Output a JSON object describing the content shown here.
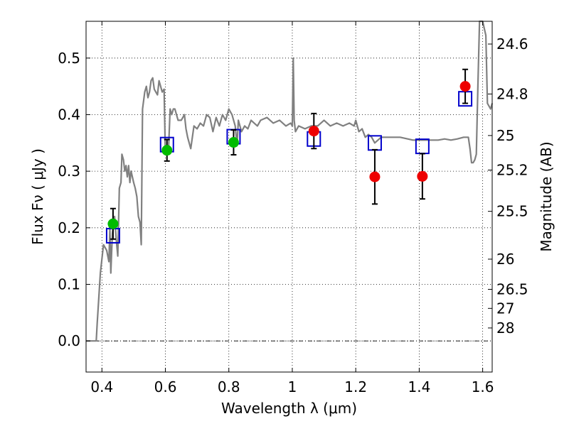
{
  "chart_data": {
    "type": "scatter",
    "title": "",
    "xlabel": "Wavelength  λ (μm)",
    "ylabel": "Flux  Fν  ( μJy )",
    "ylabel_right": "Magnitude (AB)",
    "xlim": [
      0.35,
      1.63
    ],
    "ylim": [
      -0.055,
      0.565
    ],
    "grid": true,
    "x_ticks": [
      {
        "value": 0.4,
        "label": "0.4"
      },
      {
        "value": 0.6,
        "label": "0.6"
      },
      {
        "value": 0.8,
        "label": "0.8"
      },
      {
        "value": 1.0,
        "label": "1"
      },
      {
        "value": 1.2,
        "label": "1.2"
      },
      {
        "value": 1.4,
        "label": "1.4"
      },
      {
        "value": 1.6,
        "label": "1.6"
      }
    ],
    "y_ticks": [
      {
        "value": 0.0,
        "label": "0.0"
      },
      {
        "value": 0.1,
        "label": "0.1"
      },
      {
        "value": 0.2,
        "label": "0.2"
      },
      {
        "value": 0.3,
        "label": "0.3"
      },
      {
        "value": 0.4,
        "label": "0.4"
      },
      {
        "value": 0.5,
        "label": "0.5"
      }
    ],
    "mag_ticks": [
      {
        "value": 24.6,
        "label": "24.6"
      },
      {
        "value": 24.8,
        "label": "24.8"
      },
      {
        "value": 25.0,
        "label": "25"
      },
      {
        "value": 25.2,
        "label": "25.2"
      },
      {
        "value": 25.5,
        "label": "25.5"
      },
      {
        "value": 26.0,
        "label": "26"
      },
      {
        "value": 26.5,
        "label": "26.5"
      },
      {
        "value": 27.0,
        "label": "27"
      },
      {
        "value": 28.0,
        "label": "28"
      }
    ],
    "colors": {
      "spectrum": "#808080",
      "model_box": "#0000cc",
      "green_point": "#00bb00",
      "red_point": "#ee0000",
      "error_bar": "#000000"
    },
    "spectrum": [
      [
        0.35,
        0.0
      ],
      [
        0.382,
        0.0
      ],
      [
        0.385,
        0.03
      ],
      [
        0.395,
        0.12
      ],
      [
        0.405,
        0.17
      ],
      [
        0.415,
        0.16
      ],
      [
        0.422,
        0.14
      ],
      [
        0.425,
        0.2
      ],
      [
        0.428,
        0.12
      ],
      [
        0.433,
        0.19
      ],
      [
        0.44,
        0.22
      ],
      [
        0.445,
        0.18
      ],
      [
        0.45,
        0.15
      ],
      [
        0.455,
        0.27
      ],
      [
        0.46,
        0.28
      ],
      [
        0.463,
        0.33
      ],
      [
        0.468,
        0.32
      ],
      [
        0.472,
        0.3
      ],
      [
        0.476,
        0.31
      ],
      [
        0.48,
        0.29
      ],
      [
        0.484,
        0.31
      ],
      [
        0.488,
        0.28
      ],
      [
        0.492,
        0.3
      ],
      [
        0.5,
        0.28
      ],
      [
        0.505,
        0.27
      ],
      [
        0.51,
        0.255
      ],
      [
        0.515,
        0.22
      ],
      [
        0.52,
        0.21
      ],
      [
        0.524,
        0.17
      ],
      [
        0.528,
        0.41
      ],
      [
        0.535,
        0.44
      ],
      [
        0.54,
        0.45
      ],
      [
        0.545,
        0.43
      ],
      [
        0.55,
        0.44
      ],
      [
        0.555,
        0.46
      ],
      [
        0.56,
        0.465
      ],
      [
        0.565,
        0.445
      ],
      [
        0.57,
        0.44
      ],
      [
        0.575,
        0.435
      ],
      [
        0.58,
        0.46
      ],
      [
        0.585,
        0.45
      ],
      [
        0.59,
        0.44
      ],
      [
        0.596,
        0.445
      ],
      [
        0.6,
        0.33
      ],
      [
        0.605,
        0.33
      ],
      [
        0.61,
        0.34
      ],
      [
        0.615,
        0.41
      ],
      [
        0.62,
        0.4
      ],
      [
        0.625,
        0.41
      ],
      [
        0.63,
        0.41
      ],
      [
        0.64,
        0.39
      ],
      [
        0.65,
        0.39
      ],
      [
        0.66,
        0.4
      ],
      [
        0.665,
        0.375
      ],
      [
        0.67,
        0.36
      ],
      [
        0.675,
        0.35
      ],
      [
        0.68,
        0.34
      ],
      [
        0.69,
        0.38
      ],
      [
        0.7,
        0.375
      ],
      [
        0.71,
        0.385
      ],
      [
        0.72,
        0.38
      ],
      [
        0.73,
        0.4
      ],
      [
        0.74,
        0.395
      ],
      [
        0.75,
        0.37
      ],
      [
        0.76,
        0.395
      ],
      [
        0.77,
        0.38
      ],
      [
        0.78,
        0.4
      ],
      [
        0.79,
        0.39
      ],
      [
        0.8,
        0.41
      ],
      [
        0.81,
        0.4
      ],
      [
        0.82,
        0.38
      ],
      [
        0.826,
        0.345
      ],
      [
        0.83,
        0.39
      ],
      [
        0.84,
        0.37
      ],
      [
        0.85,
        0.38
      ],
      [
        0.86,
        0.375
      ],
      [
        0.87,
        0.39
      ],
      [
        0.88,
        0.385
      ],
      [
        0.89,
        0.38
      ],
      [
        0.9,
        0.39
      ],
      [
        0.92,
        0.395
      ],
      [
        0.94,
        0.385
      ],
      [
        0.96,
        0.39
      ],
      [
        0.98,
        0.38
      ],
      [
        0.995,
        0.385
      ],
      [
        1.0,
        0.38
      ],
      [
        1.003,
        0.5
      ],
      [
        1.006,
        0.39
      ],
      [
        1.01,
        0.37
      ],
      [
        1.02,
        0.38
      ],
      [
        1.04,
        0.375
      ],
      [
        1.06,
        0.38
      ],
      [
        1.08,
        0.38
      ],
      [
        1.1,
        0.39
      ],
      [
        1.12,
        0.38
      ],
      [
        1.14,
        0.385
      ],
      [
        1.16,
        0.38
      ],
      [
        1.18,
        0.385
      ],
      [
        1.195,
        0.38
      ],
      [
        1.2,
        0.39
      ],
      [
        1.21,
        0.37
      ],
      [
        1.22,
        0.375
      ],
      [
        1.23,
        0.36
      ],
      [
        1.24,
        0.365
      ],
      [
        1.25,
        0.36
      ],
      [
        1.26,
        0.35
      ],
      [
        1.28,
        0.36
      ],
      [
        1.3,
        0.36
      ],
      [
        1.34,
        0.36
      ],
      [
        1.38,
        0.355
      ],
      [
        1.42,
        0.355
      ],
      [
        1.46,
        0.355
      ],
      [
        1.48,
        0.357
      ],
      [
        1.5,
        0.355
      ],
      [
        1.52,
        0.357
      ],
      [
        1.54,
        0.36
      ],
      [
        1.555,
        0.36
      ],
      [
        1.56,
        0.34
      ],
      [
        1.565,
        0.315
      ],
      [
        1.57,
        0.315
      ],
      [
        1.575,
        0.32
      ],
      [
        1.58,
        0.33
      ],
      [
        1.585,
        0.45
      ],
      [
        1.59,
        0.565
      ],
      [
        1.6,
        0.565
      ],
      [
        1.61,
        0.54
      ],
      [
        1.615,
        0.42
      ],
      [
        1.625,
        0.41
      ],
      [
        1.63,
        0.42
      ]
    ],
    "model_boxes": [
      {
        "x": 0.435,
        "y": 0.186
      },
      {
        "x": 0.605,
        "y": 0.347
      },
      {
        "x": 0.815,
        "y": 0.361
      },
      {
        "x": 1.068,
        "y": 0.357
      },
      {
        "x": 1.26,
        "y": 0.35
      },
      {
        "x": 1.41,
        "y": 0.344
      },
      {
        "x": 1.545,
        "y": 0.428
      }
    ],
    "green_points": [
      {
        "x": 0.435,
        "y": 0.207,
        "err": 0.027
      },
      {
        "x": 0.605,
        "y": 0.337,
        "err": 0.019
      },
      {
        "x": 0.815,
        "y": 0.351,
        "err": 0.022
      }
    ],
    "red_points": [
      {
        "x": 1.068,
        "y": 0.371,
        "err": 0.031
      },
      {
        "x": 1.26,
        "y": 0.29,
        "err": 0.048
      },
      {
        "x": 1.41,
        "y": 0.291,
        "err": 0.04
      },
      {
        "x": 1.545,
        "y": 0.45,
        "err": 0.03
      }
    ]
  }
}
